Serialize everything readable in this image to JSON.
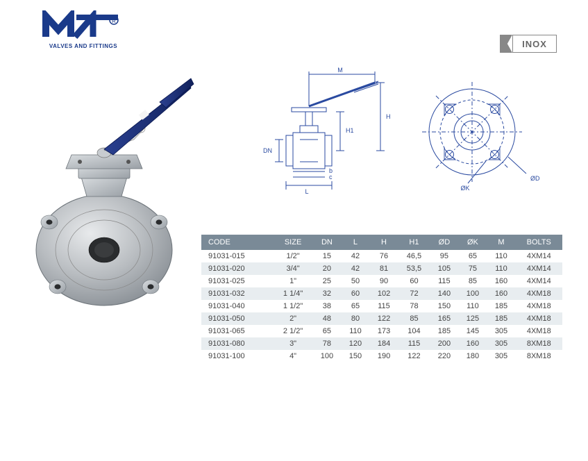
{
  "logo": {
    "tagline": "VALVES AND FITTINGS",
    "primary_color": "#1a3a8a",
    "accent_color": "#1a3a8a"
  },
  "badge": {
    "label": "INOX",
    "border_color": "#888888",
    "text_color": "#666666"
  },
  "product_image": {
    "type": "photo",
    "description": "Stainless steel wafer ball valve with blue lever handle",
    "handle_color": "#1a2f7a",
    "body_color": "#b8bcc0"
  },
  "drawings": {
    "type": "technical-diagram",
    "stroke_color": "#2a4aa0",
    "views": [
      "elevation-section",
      "flange-face"
    ],
    "labels": [
      "M",
      "H",
      "H1",
      "DN",
      "L",
      "b",
      "c",
      "ØK",
      "ØD"
    ]
  },
  "table": {
    "type": "table",
    "header_bg": "#7a8a97",
    "header_fg": "#ffffff",
    "row_even_bg": "#e8edf0",
    "row_odd_bg": "#ffffff",
    "text_color": "#444444",
    "fontsize": 11,
    "columns": [
      "CODE",
      "SIZE",
      "DN",
      "L",
      "H",
      "H1",
      "ØD",
      "ØK",
      "M",
      "BOLTS"
    ],
    "col_align": [
      "left",
      "center",
      "center",
      "center",
      "center",
      "center",
      "center",
      "center",
      "center",
      "center"
    ],
    "rows": [
      [
        "91031-015",
        "1/2\"",
        "15",
        "42",
        "76",
        "46,5",
        "95",
        "65",
        "110",
        "4XM14"
      ],
      [
        "91031-020",
        "3/4\"",
        "20",
        "42",
        "81",
        "53,5",
        "105",
        "75",
        "110",
        "4XM14"
      ],
      [
        "91031-025",
        "1\"",
        "25",
        "50",
        "90",
        "60",
        "115",
        "85",
        "160",
        "4XM14"
      ],
      [
        "91031-032",
        "1 1/4\"",
        "32",
        "60",
        "102",
        "72",
        "140",
        "100",
        "160",
        "4XM18"
      ],
      [
        "91031-040",
        "1 1/2\"",
        "38",
        "65",
        "115",
        "78",
        "150",
        "110",
        "185",
        "4XM18"
      ],
      [
        "91031-050",
        "2\"",
        "48",
        "80",
        "122",
        "85",
        "165",
        "125",
        "185",
        "4XM18"
      ],
      [
        "91031-065",
        "2 1/2\"",
        "65",
        "110",
        "173",
        "104",
        "185",
        "145",
        "305",
        "4XM18"
      ],
      [
        "91031-080",
        "3\"",
        "78",
        "120",
        "184",
        "115",
        "200",
        "160",
        "305",
        "8XM18"
      ],
      [
        "91031-100",
        "4\"",
        "100",
        "150",
        "190",
        "122",
        "220",
        "180",
        "305",
        "8XM18"
      ]
    ]
  }
}
